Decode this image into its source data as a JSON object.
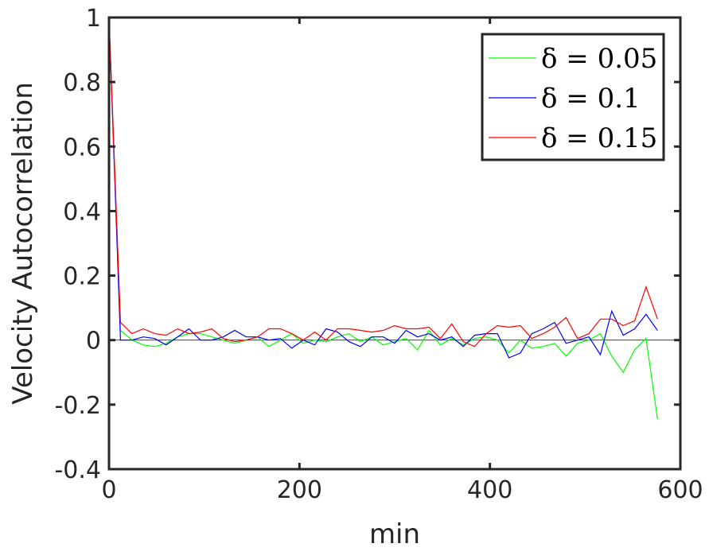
{
  "chart_data": {
    "type": "line",
    "xlabel": "min",
    "ylabel": "Velocity Autocorrelation",
    "xlim": [
      0,
      600
    ],
    "ylim": [
      -0.4,
      1
    ],
    "xticks": [
      "0",
      "200",
      "400",
      "600"
    ],
    "yticks": [
      "-0.4",
      "-0.2",
      "0",
      "0.2",
      "0.4",
      "0.6",
      "0.8",
      "1"
    ],
    "grid": false,
    "legend_position": "top-right",
    "zero_line": true,
    "x": [
      0,
      12,
      24,
      36,
      48,
      60,
      72,
      84,
      96,
      108,
      120,
      132,
      144,
      156,
      168,
      180,
      192,
      204,
      216,
      228,
      240,
      252,
      264,
      276,
      288,
      300,
      312,
      324,
      336,
      348,
      360,
      372,
      384,
      396,
      408,
      420,
      432,
      444,
      456,
      468,
      480,
      492,
      504,
      516,
      528,
      540,
      552,
      564,
      576
    ],
    "series": [
      {
        "name": "δ = 0.05",
        "color": "#00ff00",
        "values": [
          1,
          0.03,
          0.0,
          -0.015,
          -0.02,
          -0.01,
          0.01,
          0.02,
          0.02,
          0.01,
          0.0,
          -0.01,
          0.0,
          0.01,
          -0.02,
          0.0,
          0.02,
          -0.01,
          0.0,
          -0.005,
          0.01,
          0.02,
          -0.005,
          0.01,
          -0.015,
          -0.005,
          0.005,
          -0.03,
          0.03,
          -0.015,
          0.005,
          -0.015,
          0.005,
          0.01,
          0.0,
          -0.04,
          0.0,
          -0.025,
          -0.02,
          -0.01,
          -0.05,
          -0.01,
          0.0,
          0.02,
          -0.05,
          -0.1,
          -0.03,
          0.005,
          -0.245
        ]
      },
      {
        "name": "δ = 0.1",
        "color": "#0000ff",
        "values": [
          1,
          0.0,
          0.0,
          0.01,
          0.005,
          -0.015,
          0.01,
          0.035,
          0.0,
          0.0,
          0.01,
          0.03,
          0.01,
          0.01,
          0.0,
          0.005,
          -0.025,
          0.0,
          -0.015,
          0.035,
          0.025,
          -0.005,
          -0.02,
          0.01,
          0.01,
          -0.01,
          0.03,
          0.01,
          0.02,
          0.0,
          0.01,
          -0.02,
          0.015,
          0.02,
          0.02,
          -0.055,
          -0.04,
          0.02,
          0.035,
          0.055,
          -0.01,
          0.0,
          0.01,
          -0.045,
          0.09,
          0.015,
          0.035,
          0.08,
          0.03
        ]
      },
      {
        "name": "δ = 0.15",
        "color": "#ff0000",
        "values": [
          1,
          0.055,
          0.02,
          0.035,
          0.02,
          0.015,
          0.035,
          0.02,
          0.025,
          0.035,
          0.005,
          -0.005,
          0.0,
          0.01,
          0.035,
          0.035,
          0.02,
          0.0,
          0.025,
          0.0,
          0.035,
          0.035,
          0.03,
          0.025,
          0.03,
          0.045,
          0.035,
          0.035,
          0.04,
          0.005,
          0.05,
          -0.005,
          -0.02,
          0.02,
          0.045,
          0.04,
          0.045,
          0.005,
          0.02,
          0.04,
          0.07,
          0.005,
          0.02,
          0.065,
          0.065,
          0.045,
          0.06,
          0.165,
          0.065
        ]
      }
    ]
  }
}
